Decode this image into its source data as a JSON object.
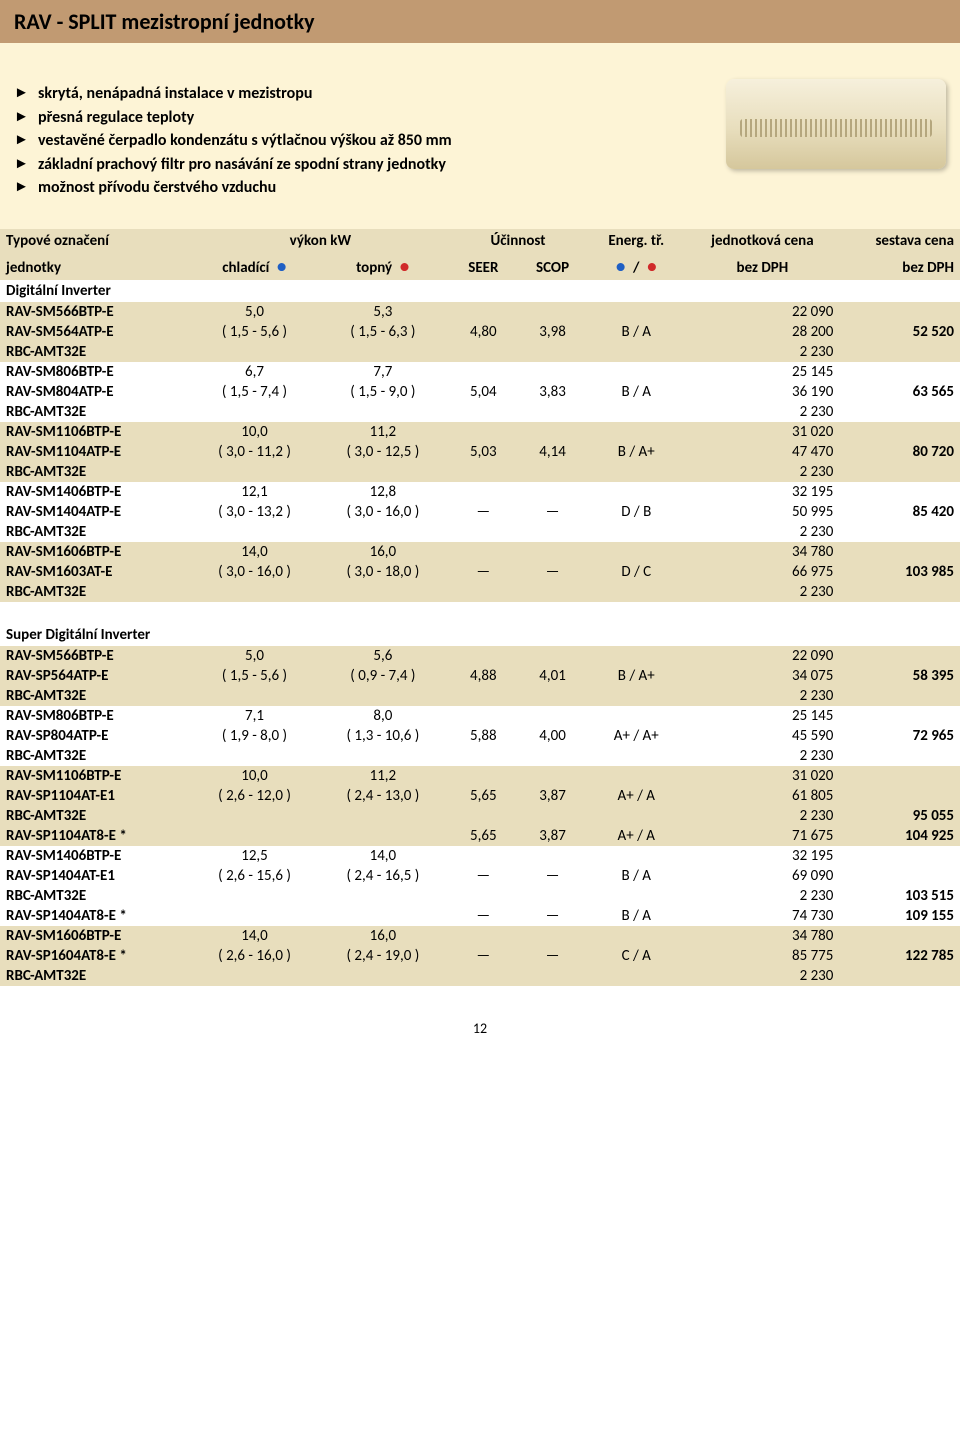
{
  "title": "RAV - SPLIT  mezistropní jednotky",
  "features": [
    "skrytá, nenápadná instalace v mezistropu",
    "přesná regulace teploty",
    "vestavěné čerpadlo kondenzátu s výtlačnou výškou až 850 mm",
    "základní prachový filtr pro nasávání ze spodní strany jednotky",
    "možnost přívodu čerstvého vzduchu"
  ],
  "thead": {
    "r1": [
      "Typové označení",
      "výkon kW",
      "",
      "Účinnost",
      "",
      "Energ. tř.",
      "jednotková cena",
      "sestava cena"
    ],
    "r2": [
      "jednotky",
      "chladící",
      "topný",
      "SEER",
      "SCOP",
      "/",
      "bez DPH",
      "bez DPH"
    ]
  },
  "sections": [
    {
      "label": "Digitální Inverter",
      "groups": [
        {
          "band": "a",
          "rows": [
            [
              "RAV-SM566BTP-E",
              "5,0",
              "5,3",
              "",
              "",
              "",
              "22 090",
              ""
            ],
            [
              "RAV-SM564ATP-E",
              "( 1,5 - 5,6 )",
              "( 1,5 - 6,3 )",
              "4,80",
              "3,98",
              "B / A",
              "28 200",
              "52 520"
            ],
            [
              "RBC-AMT32E",
              "",
              "",
              "",
              "",
              "",
              "2 230",
              ""
            ]
          ]
        },
        {
          "band": "b",
          "rows": [
            [
              "RAV-SM806BTP-E",
              "6,7",
              "7,7",
              "",
              "",
              "",
              "25 145",
              ""
            ],
            [
              "RAV-SM804ATP-E",
              "( 1,5 - 7,4 )",
              "( 1,5 - 9,0 )",
              "5,04",
              "3,83",
              "B / A",
              "36 190",
              "63 565"
            ],
            [
              "RBC-AMT32E",
              "",
              "",
              "",
              "",
              "",
              "2 230",
              ""
            ]
          ]
        },
        {
          "band": "a",
          "rows": [
            [
              "RAV-SM1106BTP-E",
              "10,0",
              "11,2",
              "",
              "",
              "",
              "31 020",
              ""
            ],
            [
              "RAV-SM1104ATP-E",
              "( 3,0 - 11,2 )",
              "( 3,0 - 12,5 )",
              "5,03",
              "4,14",
              "B / A+",
              "47 470",
              "80 720"
            ],
            [
              "RBC-AMT32E",
              "",
              "",
              "",
              "",
              "",
              "2 230",
              ""
            ]
          ]
        },
        {
          "band": "b",
          "rows": [
            [
              "RAV-SM1406BTP-E",
              "12,1",
              "12,8",
              "",
              "",
              "",
              "32 195",
              ""
            ],
            [
              "RAV-SM1404ATP-E",
              "( 3,0 - 13,2 )",
              "( 3,0 - 16,0 )",
              "—",
              "—",
              "D / B",
              "50 995",
              "85 420"
            ],
            [
              "RBC-AMT32E",
              "",
              "",
              "",
              "",
              "",
              "2 230",
              ""
            ]
          ]
        },
        {
          "band": "a",
          "rows": [
            [
              "RAV-SM1606BTP-E",
              "14,0",
              "16,0",
              "",
              "",
              "",
              "34 780",
              ""
            ],
            [
              "RAV-SM1603AT-E",
              "( 3,0 - 16,0 )",
              "( 3,0 - 18,0 )",
              "—",
              "—",
              "D / C",
              "66 975",
              "103 985"
            ],
            [
              "RBC-AMT32E",
              "",
              "",
              "",
              "",
              "",
              "2 230",
              ""
            ]
          ]
        }
      ]
    },
    {
      "label": "Super Digitální Inverter",
      "groups": [
        {
          "band": "a",
          "rows": [
            [
              "RAV-SM566BTP-E",
              "5,0",
              "5,6",
              "",
              "",
              "",
              "22 090",
              ""
            ],
            [
              "RAV-SP564ATP-E",
              "( 1,5 - 5,6 )",
              "( 0,9 - 7,4 )",
              "4,88",
              "4,01",
              "B / A+",
              "34 075",
              "58 395"
            ],
            [
              "RBC-AMT32E",
              "",
              "",
              "",
              "",
              "",
              "2 230",
              ""
            ]
          ]
        },
        {
          "band": "b",
          "rows": [
            [
              "RAV-SM806BTP-E",
              "7,1",
              "8,0",
              "",
              "",
              "",
              "25 145",
              ""
            ],
            [
              "RAV-SP804ATP-E",
              "( 1,9 - 8,0 )",
              "( 1,3 - 10,6 )",
              "5,88",
              "4,00",
              "A+ / A+",
              "45 590",
              "72 965"
            ],
            [
              "RBC-AMT32E",
              "",
              "",
              "",
              "",
              "",
              "2 230",
              ""
            ]
          ]
        },
        {
          "band": "a",
          "rows": [
            [
              "RAV-SM1106BTP-E",
              "10,0",
              "11,2",
              "",
              "",
              "",
              "31 020",
              ""
            ],
            [
              "RAV-SP1104AT-E1",
              "( 2,6 - 12,0 )",
              "( 2,4 - 13,0 )",
              "5,65",
              "3,87",
              "A+ / A",
              "61 805",
              ""
            ],
            [
              "RBC-AMT32E",
              "",
              "",
              "",
              "",
              "",
              "2 230",
              "95 055"
            ],
            [
              "RAV-SP1104AT8-E *",
              "",
              "",
              "5,65",
              "3,87",
              "A+ / A",
              "71 675",
              "104 925"
            ]
          ]
        },
        {
          "band": "b",
          "rows": [
            [
              "RAV-SM1406BTP-E",
              "12,5",
              "14,0",
              "",
              "",
              "",
              "32 195",
              ""
            ],
            [
              "RAV-SP1404AT-E1",
              "( 2,6 - 15,6 )",
              "( 2,4 - 16,5 )",
              "—",
              "—",
              "B / A",
              "69 090",
              ""
            ],
            [
              "RBC-AMT32E",
              "",
              "",
              "",
              "",
              "",
              "2 230",
              "103 515"
            ],
            [
              "RAV-SP1404AT8-E *",
              "",
              "",
              "—",
              "—",
              "B / A",
              "74 730",
              "109 155"
            ]
          ]
        },
        {
          "band": "a",
          "rows": [
            [
              "RAV-SM1606BTP-E",
              "14,0",
              "16,0",
              "",
              "",
              "",
              "34 780",
              ""
            ],
            [
              "RAV-SP1604AT8-E *",
              "( 2,6 - 16,0 )",
              "( 2,4 - 19,0 )",
              "—",
              "—",
              "C / A",
              "85 775",
              "122 785"
            ],
            [
              "RBC-AMT32E",
              "",
              "",
              "",
              "",
              "",
              "2 230",
              ""
            ]
          ]
        }
      ]
    }
  ],
  "page_number": "12",
  "colors": {
    "header_bg": "#c19a72",
    "cream_bg": "#fdf4d6",
    "band_a": "#e8debd",
    "band_b": "#ffffff",
    "dot_blue": "#1f5fc4",
    "dot_red": "#d02a2a"
  }
}
